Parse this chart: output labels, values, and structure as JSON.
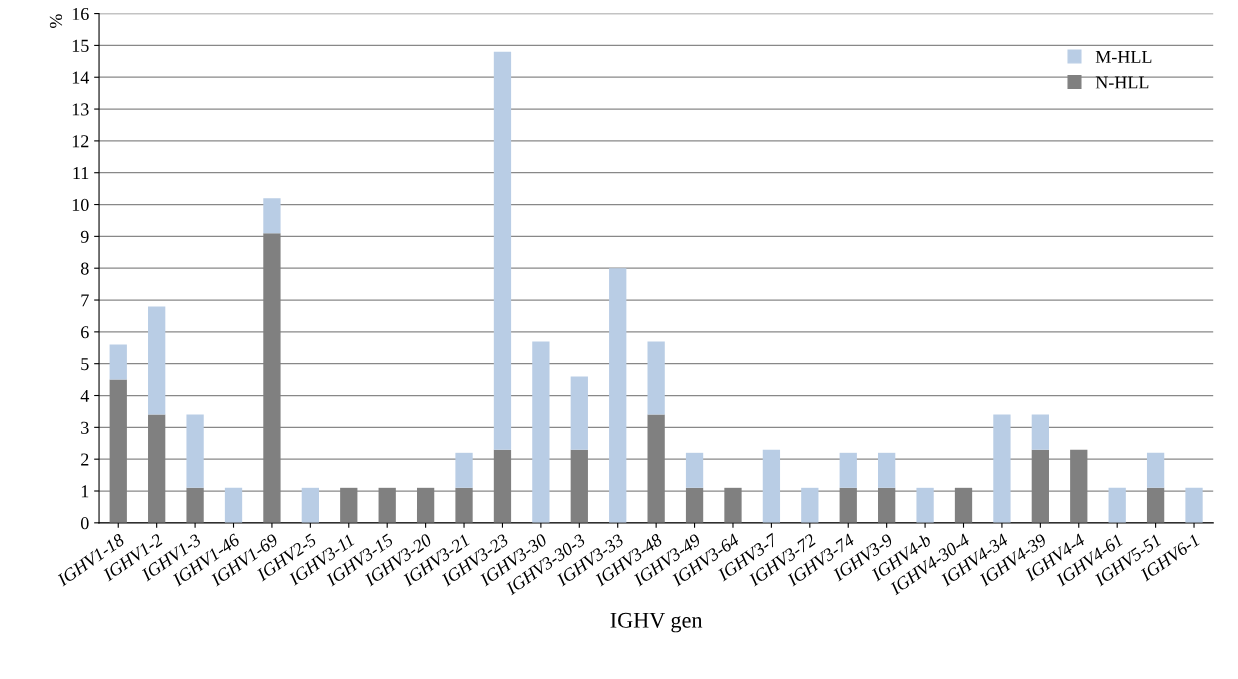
{
  "chart_data": {
    "type": "bar",
    "stacked": true,
    "xlabel": "IGHV gen",
    "ylabel": "%",
    "categories": [
      "IGHV1-18",
      "IGHV1-2",
      "IGHV1-3",
      "IGHV1-46",
      "IGHV1-69",
      "IGHV2-5",
      "IGHV3-11",
      "IGHV3-15",
      "IGHV3-20",
      "IGHV3-21",
      "IGHV3-23",
      "IGHV3-30",
      "IGHV3-30-3",
      "IGHV3-33",
      "IGHV3-48",
      "IGHV3-49",
      "IGHV3-64",
      "IGHV3-7",
      "IGHV3-72",
      "IGHV3-74",
      "IGHV3-9",
      "IGHV4-b",
      "IGHV4-30-4",
      "IGHV4-34",
      "IGHV4-39",
      "IGHV4-4",
      "IGHV4-61",
      "IGHV5-51",
      "IGHV6-1"
    ],
    "series": [
      {
        "name": "N-HLL",
        "color": "#808080",
        "values": [
          4.5,
          3.4,
          1.1,
          0,
          9.1,
          0,
          1.1,
          1.1,
          1.1,
          1.1,
          2.3,
          0,
          2.3,
          0,
          3.4,
          1.1,
          1.1,
          0,
          0,
          1.1,
          1.1,
          0,
          1.1,
          0,
          2.3,
          2.3,
          0,
          1.1,
          0
        ]
      },
      {
        "name": "M-HLL",
        "color": "#b9cde5",
        "values": [
          1.1,
          3.4,
          2.3,
          1.1,
          1.1,
          1.1,
          0,
          0,
          0,
          1.1,
          12.5,
          5.7,
          2.3,
          8.0,
          2.3,
          1.1,
          0,
          2.3,
          1.1,
          1.1,
          1.1,
          1.1,
          0,
          3.4,
          1.1,
          0,
          1.1,
          1.1,
          1.1
        ]
      }
    ],
    "ylim": [
      0,
      16
    ],
    "yticks": [
      0,
      1,
      2,
      3,
      4,
      5,
      6,
      7,
      8,
      9,
      10,
      11,
      12,
      13,
      14,
      15,
      16
    ],
    "grid": "y",
    "legend": "top right"
  }
}
